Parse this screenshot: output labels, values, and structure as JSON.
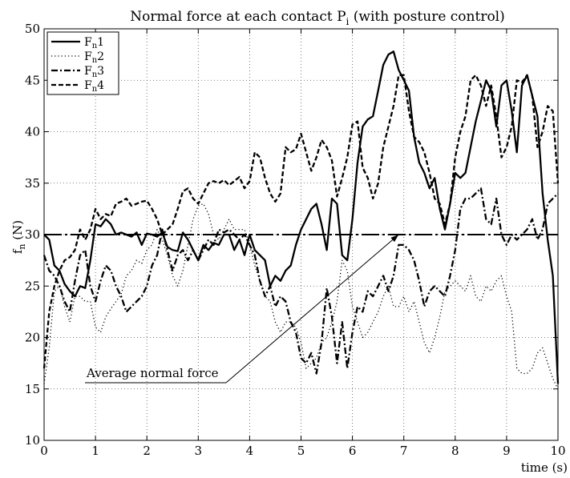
{
  "chart_data": {
    "type": "line",
    "title": {
      "main": "Normal force at each contact P",
      "sub": "i",
      "tail": " (with posture control)"
    },
    "xlabel": "time (s)",
    "ylabel": {
      "main": "f",
      "sub": "n",
      "tail": " (N)"
    },
    "xlim": [
      0,
      10
    ],
    "ylim": [
      10,
      50
    ],
    "xticks": [
      0,
      1,
      2,
      3,
      4,
      5,
      6,
      7,
      8,
      9,
      10
    ],
    "yticks": [
      10,
      15,
      20,
      25,
      30,
      35,
      40,
      45,
      50
    ],
    "grid": true,
    "legend_position": "top-left",
    "average_line": {
      "y": 30,
      "x_range": [
        0,
        10
      ]
    },
    "annotation": {
      "text": "Average normal force",
      "arrow_to": [
        6.9,
        30
      ]
    },
    "series": [
      {
        "name": "1",
        "legend_prefix": "F",
        "legend_sub": "n",
        "style": "solid",
        "x": [
          0,
          0.1,
          0.2,
          0.3,
          0.4,
          0.5,
          0.6,
          0.7,
          0.8,
          0.9,
          1.0,
          1.1,
          1.2,
          1.3,
          1.4,
          1.5,
          1.6,
          1.7,
          1.8,
          1.9,
          2.0,
          2.1,
          2.2,
          2.3,
          2.4,
          2.5,
          2.6,
          2.7,
          2.8,
          2.9,
          3.0,
          3.1,
          3.2,
          3.3,
          3.4,
          3.5,
          3.6,
          3.7,
          3.8,
          3.9,
          4.0,
          4.1,
          4.2,
          4.3,
          4.4,
          4.5,
          4.6,
          4.7,
          4.8,
          4.9,
          5.0,
          5.1,
          5.2,
          5.3,
          5.4,
          5.5,
          5.6,
          5.7,
          5.8,
          5.9,
          6.0,
          6.1,
          6.2,
          6.3,
          6.4,
          6.5,
          6.6,
          6.7,
          6.8,
          6.9,
          7.0,
          7.1,
          7.2,
          7.3,
          7.4,
          7.5,
          7.6,
          7.7,
          7.8,
          7.9,
          8.0,
          8.1,
          8.2,
          8.3,
          8.4,
          8.5,
          8.6,
          8.7,
          8.8,
          8.9,
          9.0,
          9.1,
          9.2,
          9.3,
          9.4,
          9.5,
          9.6,
          9.7,
          9.8,
          9.9,
          10.0
        ],
        "y": [
          30,
          29.5,
          27,
          26.5,
          25.2,
          24.5,
          24,
          25,
          24.8,
          27.5,
          31,
          30.8,
          31.5,
          31,
          30,
          30.2,
          30,
          29.8,
          30.2,
          29,
          30.1,
          30,
          29.8,
          30.2,
          28.8,
          28.5,
          28.4,
          30.2,
          29.5,
          28.5,
          27.5,
          29,
          28.5,
          29.2,
          29,
          30,
          30,
          28.5,
          29.5,
          28,
          30,
          28.5,
          28,
          27.5,
          25,
          26,
          25.5,
          26.5,
          27,
          29,
          30.5,
          31.5,
          32.5,
          33,
          31,
          28.5,
          33.5,
          33,
          28,
          27.5,
          31.5,
          37,
          40.5,
          41.2,
          41.5,
          44,
          46.5,
          47.5,
          47.8,
          46,
          45,
          44,
          39.5,
          37,
          36,
          34.5,
          35.5,
          32.5,
          30.5,
          33,
          36,
          35.5,
          36,
          38.5,
          41,
          43,
          45,
          44,
          40.5,
          44.5,
          45,
          42,
          38,
          44.5,
          45.5,
          43.5,
          41.5,
          34,
          29.5,
          26,
          15.5
        ]
      },
      {
        "name": "2",
        "legend_prefix": "F",
        "legend_sub": "n",
        "style": "dotted",
        "x": [
          0,
          0.1,
          0.2,
          0.3,
          0.4,
          0.5,
          0.6,
          0.7,
          0.8,
          0.9,
          1.0,
          1.1,
          1.2,
          1.3,
          1.4,
          1.5,
          1.6,
          1.7,
          1.8,
          1.9,
          2.0,
          2.1,
          2.2,
          2.3,
          2.4,
          2.5,
          2.6,
          2.7,
          2.8,
          2.9,
          3.0,
          3.1,
          3.2,
          3.3,
          3.4,
          3.5,
          3.6,
          3.7,
          3.8,
          3.9,
          4.0,
          4.1,
          4.2,
          4.3,
          4.4,
          4.5,
          4.6,
          4.7,
          4.8,
          4.9,
          5.0,
          5.1,
          5.2,
          5.3,
          5.4,
          5.5,
          5.6,
          5.7,
          5.8,
          5.9,
          6.0,
          6.1,
          6.2,
          6.3,
          6.4,
          6.5,
          6.6,
          6.7,
          6.8,
          6.9,
          7.0,
          7.1,
          7.2,
          7.3,
          7.4,
          7.5,
          7.6,
          7.7,
          7.8,
          7.9,
          8.0,
          8.1,
          8.2,
          8.3,
          8.4,
          8.5,
          8.6,
          8.7,
          8.8,
          8.9,
          9.0,
          9.1,
          9.2,
          9.3,
          9.4,
          9.5,
          9.6,
          9.7,
          9.8,
          9.9,
          10.0
        ],
        "y": [
          15.5,
          19,
          24.5,
          25,
          23,
          21.5,
          24,
          24,
          23.5,
          23.5,
          21,
          20.5,
          22,
          22.8,
          23.5,
          24.2,
          26,
          26.5,
          27.5,
          27.2,
          28.5,
          29,
          30.5,
          29.5,
          28,
          26,
          25,
          26.5,
          29,
          31.5,
          32.8,
          33,
          32,
          30,
          29.5,
          30.5,
          31.5,
          30.5,
          30.5,
          30.5,
          29,
          27,
          25.5,
          24,
          23.5,
          21.5,
          20.5,
          21.5,
          21.5,
          21,
          19.5,
          17,
          17.5,
          18,
          19.5,
          20,
          21.5,
          23.5,
          27.5,
          26.5,
          23,
          21.5,
          20,
          20.5,
          21.5,
          22.5,
          24,
          25,
          23,
          23,
          24,
          22.5,
          23.5,
          21.5,
          19.5,
          18.5,
          20,
          22,
          24.5,
          25,
          25.5,
          25,
          24.5,
          26,
          24,
          23.5,
          25,
          24.5,
          25.5,
          26,
          24,
          22.5,
          17,
          16.5,
          16.5,
          17,
          18.5,
          19,
          17.5,
          16,
          15
        ]
      },
      {
        "name": "3",
        "legend_prefix": "F",
        "legend_sub": "n",
        "style": "dashdot",
        "x": [
          0,
          0.1,
          0.2,
          0.3,
          0.4,
          0.5,
          0.6,
          0.7,
          0.8,
          0.9,
          1.0,
          1.1,
          1.2,
          1.3,
          1.4,
          1.5,
          1.6,
          1.7,
          1.8,
          1.9,
          2.0,
          2.1,
          2.2,
          2.3,
          2.4,
          2.5,
          2.6,
          2.7,
          2.8,
          2.9,
          3.0,
          3.1,
          3.2,
          3.3,
          3.4,
          3.5,
          3.6,
          3.7,
          3.8,
          3.9,
          4.0,
          4.1,
          4.2,
          4.3,
          4.4,
          4.5,
          4.6,
          4.7,
          4.8,
          4.9,
          5.0,
          5.1,
          5.2,
          5.3,
          5.4,
          5.5,
          5.6,
          5.7,
          5.8,
          5.9,
          6.0,
          6.1,
          6.2,
          6.3,
          6.4,
          6.5,
          6.6,
          6.7,
          6.8,
          6.9,
          7.0,
          7.1,
          7.2,
          7.3,
          7.4,
          7.5,
          7.6,
          7.7,
          7.8,
          7.9,
          8.0,
          8.1,
          8.2,
          8.3,
          8.4,
          8.5,
          8.6,
          8.7,
          8.8,
          8.9,
          9.0,
          9.1,
          9.2,
          9.3,
          9.4,
          9.5,
          9.6,
          9.7,
          9.8,
          9.9,
          10.0
        ],
        "y": [
          28,
          26.5,
          26,
          25,
          23.5,
          22.5,
          25.5,
          28,
          28.5,
          25,
          23.5,
          25.5,
          27,
          26.5,
          25,
          24,
          22.5,
          23,
          23.5,
          24,
          25,
          27,
          28,
          30.5,
          28.5,
          26.5,
          28,
          28.5,
          27.5,
          28.5,
          27.5,
          28.5,
          29.5,
          29,
          30.5,
          30.2,
          30.5,
          30,
          29.5,
          30,
          29,
          28,
          25.5,
          24,
          25,
          23,
          24,
          23.5,
          21.5,
          20.5,
          18,
          17.5,
          18.5,
          16.5,
          19.5,
          24.8,
          22,
          17.5,
          21.5,
          17,
          20.5,
          23,
          22.5,
          24.5,
          24,
          25,
          26,
          24.5,
          26,
          29,
          29,
          28.5,
          27.5,
          25.5,
          23,
          24.5,
          25,
          24.5,
          24,
          26,
          28.5,
          32.5,
          33.5,
          33.5,
          34,
          34.5,
          31.5,
          31,
          33.5,
          30,
          29,
          30,
          29.5,
          30,
          30.5,
          31.5,
          29.5,
          30.5,
          33,
          33.5,
          34
        ]
      },
      {
        "name": "4",
        "legend_prefix": "F",
        "legend_sub": "n",
        "style": "dashed",
        "x": [
          0,
          0.1,
          0.2,
          0.3,
          0.4,
          0.5,
          0.6,
          0.7,
          0.8,
          0.9,
          1.0,
          1.1,
          1.2,
          1.3,
          1.4,
          1.5,
          1.6,
          1.7,
          1.8,
          1.9,
          2.0,
          2.1,
          2.2,
          2.3,
          2.4,
          2.5,
          2.6,
          2.7,
          2.8,
          2.9,
          3.0,
          3.1,
          3.2,
          3.3,
          3.4,
          3.5,
          3.6,
          3.7,
          3.8,
          3.9,
          4.0,
          4.1,
          4.2,
          4.3,
          4.4,
          4.5,
          4.6,
          4.7,
          4.8,
          4.9,
          5.0,
          5.1,
          5.2,
          5.3,
          5.4,
          5.5,
          5.6,
          5.7,
          5.8,
          5.9,
          6.0,
          6.1,
          6.2,
          6.3,
          6.4,
          6.5,
          6.6,
          6.7,
          6.8,
          6.9,
          7.0,
          7.1,
          7.2,
          7.3,
          7.4,
          7.5,
          7.6,
          7.7,
          7.8,
          7.9,
          8.0,
          8.1,
          8.2,
          8.3,
          8.4,
          8.5,
          8.6,
          8.7,
          8.8,
          8.9,
          9.0,
          9.1,
          9.2,
          9.3,
          9.4,
          9.5,
          9.6,
          9.7,
          9.8,
          9.9,
          10.0
        ],
        "y": [
          17,
          22.5,
          25,
          26.5,
          27.5,
          27.8,
          28.5,
          30.5,
          29.5,
          30.5,
          32.5,
          31.5,
          32,
          31.8,
          33,
          33.2,
          33.5,
          32.8,
          33,
          33.2,
          33.3,
          32.5,
          31.5,
          30,
          30.5,
          31,
          32.5,
          34.2,
          34.5,
          33.5,
          33,
          34,
          35,
          35.2,
          35,
          35.3,
          34.8,
          35.2,
          35.6,
          34.5,
          35.2,
          38,
          37.5,
          35.5,
          34,
          33.2,
          34,
          38.5,
          38,
          38.3,
          39.8,
          38,
          36.2,
          37.5,
          39.2,
          38.5,
          37.2,
          33.7,
          35.5,
          37.5,
          40.7,
          41,
          36.5,
          35.5,
          33.5,
          35,
          38.5,
          40.5,
          42.5,
          45.5,
          45.5,
          42,
          39.5,
          39,
          38,
          36,
          33.5,
          33,
          31,
          33,
          37.5,
          40,
          41.5,
          45,
          45.5,
          44.5,
          42.5,
          44.5,
          41.5,
          37.5,
          38.5,
          40.5,
          45,
          44.8,
          45.5,
          43.5,
          38.5,
          40,
          42.5,
          42,
          35
        ]
      }
    ]
  }
}
